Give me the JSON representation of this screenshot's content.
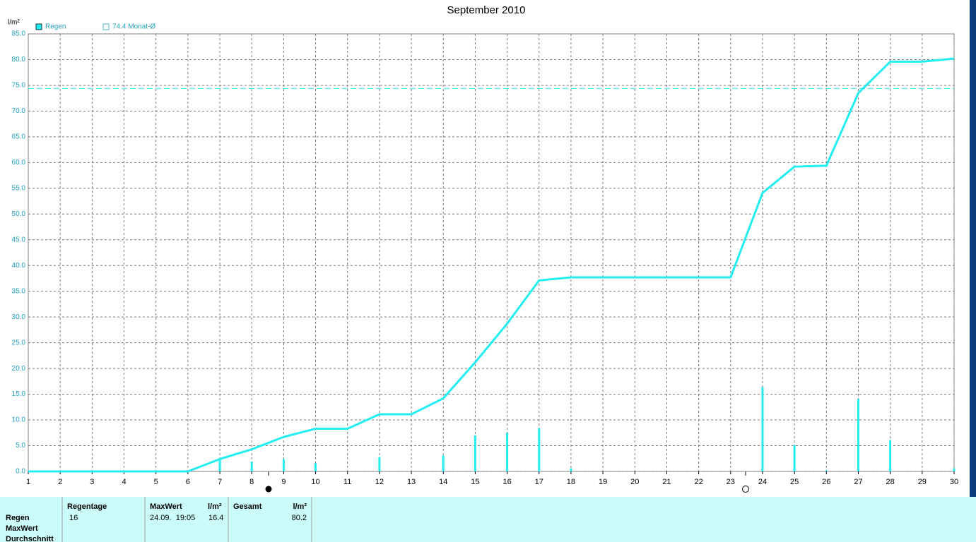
{
  "chart_data": {
    "type": "line-bar",
    "title": "September 2010",
    "y_label": "l/m²",
    "x": [
      1,
      2,
      3,
      4,
      5,
      6,
      7,
      8,
      9,
      10,
      11,
      12,
      13,
      14,
      15,
      16,
      17,
      18,
      19,
      20,
      21,
      22,
      23,
      24,
      25,
      26,
      27,
      28,
      29,
      30
    ],
    "series": [
      {
        "name": "Regen",
        "kind": "line",
        "color": "#22eef2",
        "values": [
          0,
          0,
          0,
          0,
          0,
          0,
          2.4,
          4.3,
          6.7,
          8.3,
          8.3,
          11.1,
          11.1,
          14.2,
          21.2,
          28.7,
          37.1,
          37.7,
          37.7,
          37.7,
          37.7,
          37.7,
          37.7,
          54.1,
          59.2,
          59.4,
          73.5,
          79.6,
          79.6,
          80.2
        ]
      },
      {
        "kind": "bar",
        "color": "#22eef2",
        "values": [
          0,
          0,
          0,
          0,
          0,
          0,
          2.4,
          1.9,
          2.4,
          1.6,
          0,
          2.8,
          0,
          3.1,
          7.0,
          7.5,
          8.4,
          0.6,
          0,
          0,
          0,
          0,
          0,
          16.4,
          5.1,
          0.2,
          14.1,
          6.1,
          0,
          0.6
        ]
      }
    ],
    "reference": {
      "value": 74.4,
      "label": "74.4 Monat-Ø",
      "color": "#22eef2"
    },
    "xlim": [
      1,
      30
    ],
    "xticks": [
      1,
      2,
      3,
      4,
      5,
      6,
      7,
      8,
      9,
      10,
      11,
      12,
      13,
      14,
      15,
      16,
      17,
      18,
      19,
      20,
      21,
      22,
      23,
      24,
      25,
      26,
      27,
      28,
      29,
      30
    ],
    "ylim": [
      0,
      85
    ],
    "yticks": [
      {
        "value": 0,
        "label": "0.0"
      },
      {
        "value": 5,
        "label": "5.0"
      },
      {
        "value": 10,
        "label": "10.0"
      },
      {
        "value": 15,
        "label": "15.0"
      },
      {
        "value": 20,
        "label": "20.0"
      },
      {
        "value": 25,
        "label": "25.0"
      },
      {
        "value": 30,
        "label": "30.0"
      },
      {
        "value": 35,
        "label": "35.0"
      },
      {
        "value": 40,
        "label": "40.0"
      },
      {
        "value": 45,
        "label": "45.0"
      },
      {
        "value": 50,
        "label": "50.0"
      },
      {
        "value": 55,
        "label": "55.0"
      },
      {
        "value": 60,
        "label": "60.0"
      },
      {
        "value": 65,
        "label": "65.0"
      },
      {
        "value": 70,
        "label": "70.0"
      },
      {
        "value": 75,
        "label": "75.0"
      },
      {
        "value": 80,
        "label": "80.0"
      },
      {
        "value": 85,
        "label": "85.0"
      }
    ],
    "grid": true
  },
  "table": {
    "row_labels": [
      "Regen",
      "MaxWert",
      "Durchschnitt"
    ],
    "regentage": {
      "header": "Regentage",
      "value": "16"
    },
    "maxwert": {
      "header": "MaxWert",
      "unit": "l/m²",
      "time": "24.09.  19:05",
      "value": "16.4"
    },
    "gesamt": {
      "header": "Gesamt",
      "unit": "l/m²",
      "value": "80.2"
    }
  }
}
